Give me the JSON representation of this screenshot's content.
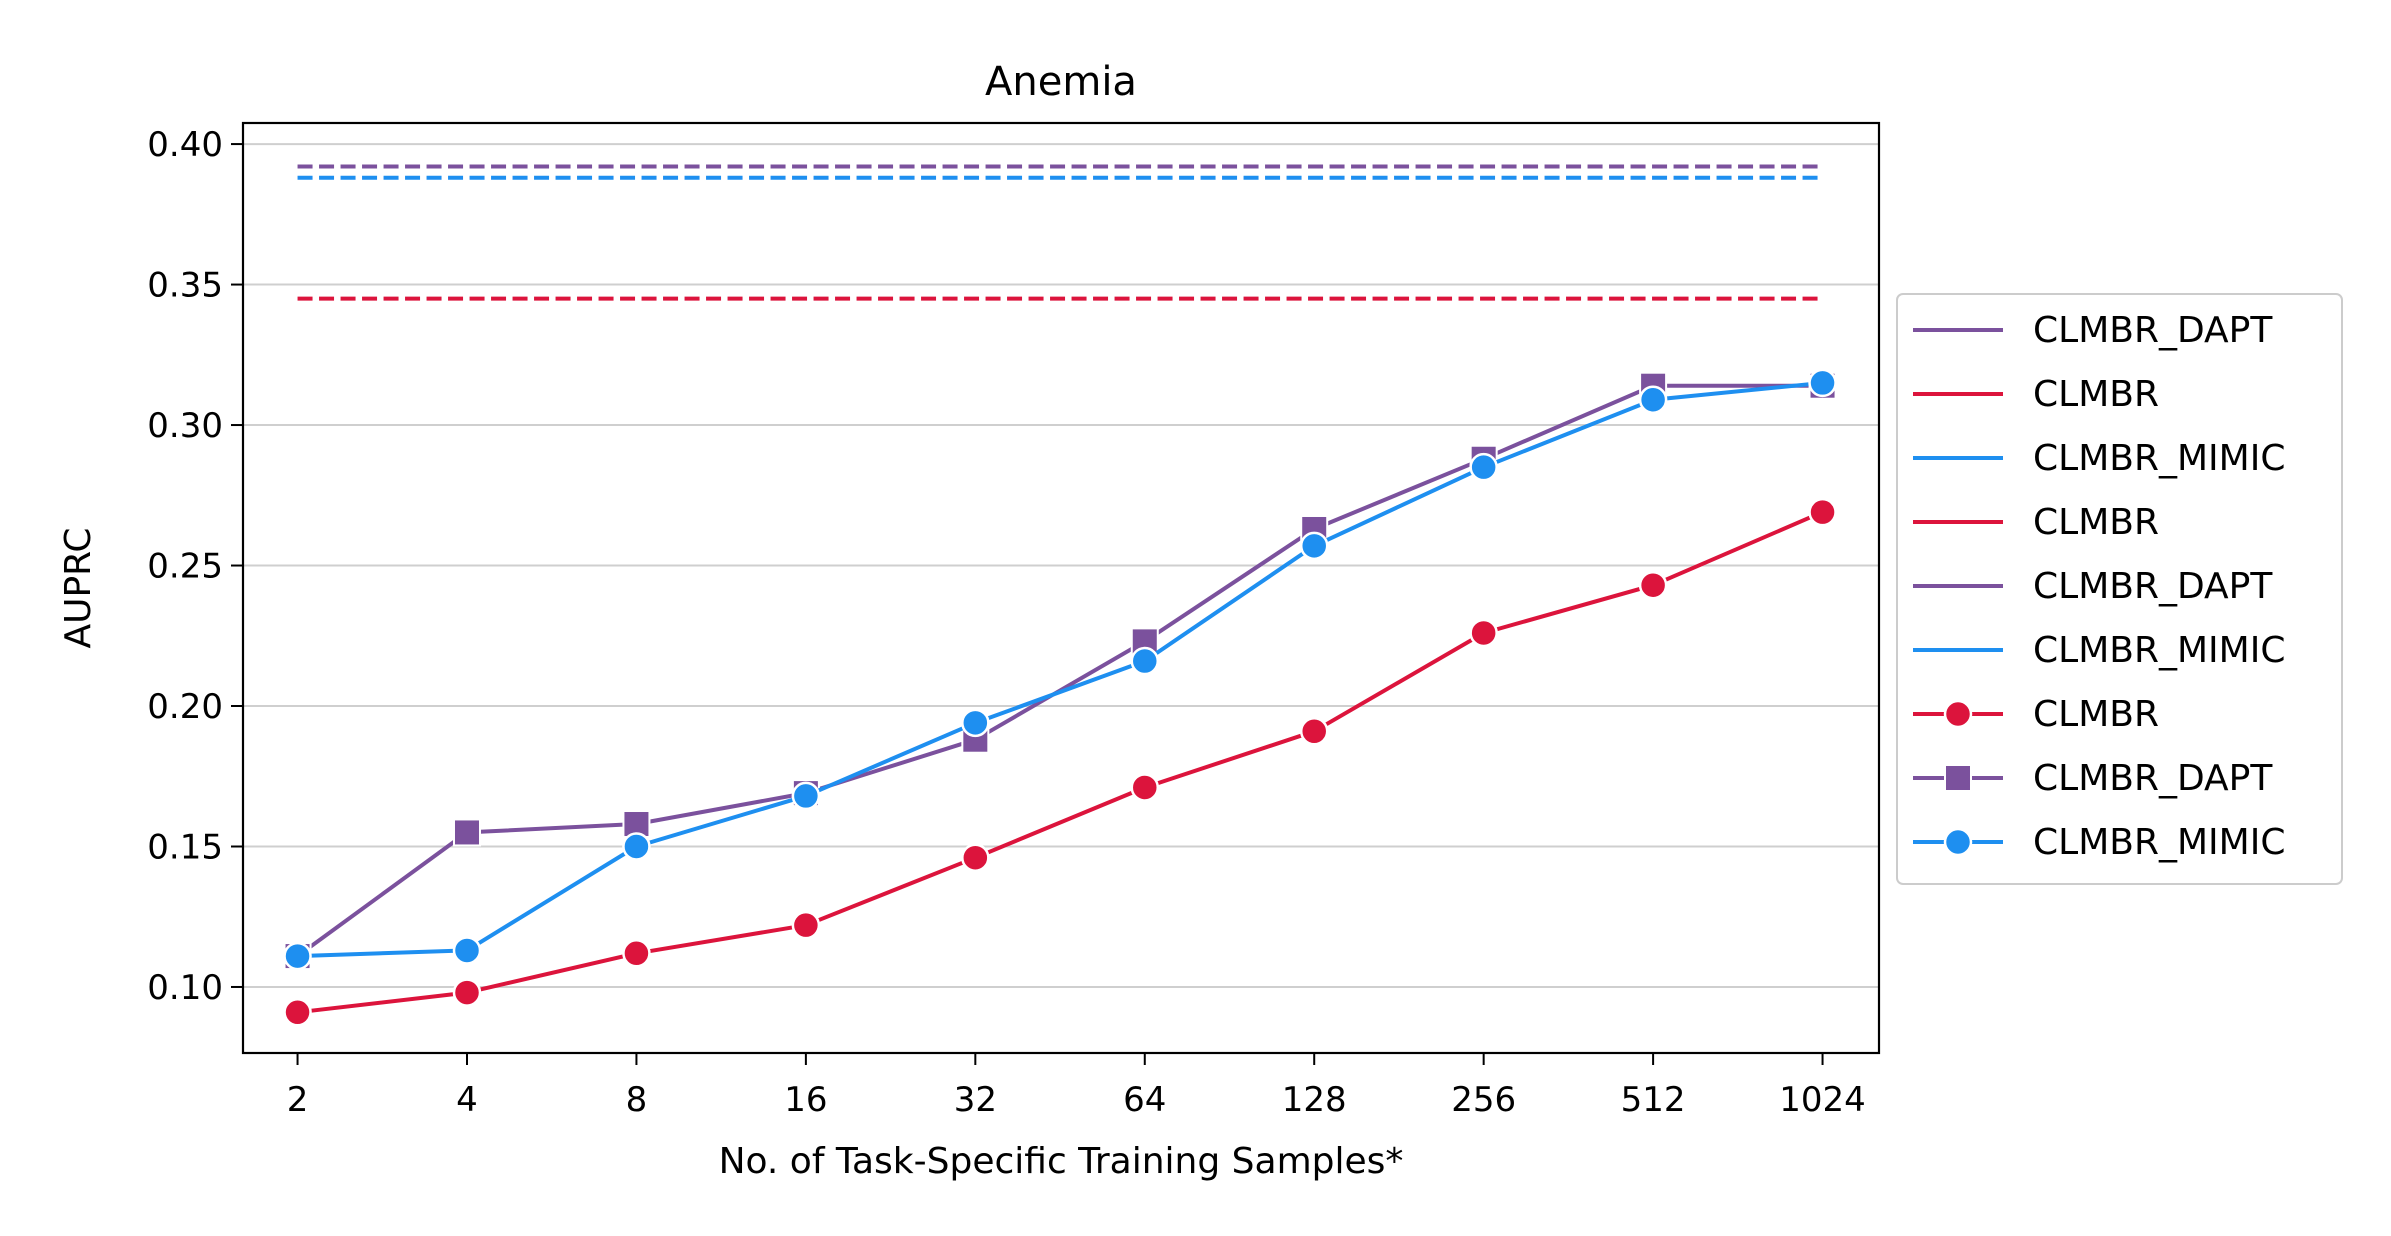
{
  "chart_data": {
    "type": "line",
    "title": "Anemia",
    "xlabel": "No. of Task-Specific Training Samples*",
    "ylabel": "AUPRC",
    "x": [
      2,
      4,
      8,
      16,
      32,
      64,
      128,
      256,
      512,
      1024
    ],
    "x_tick_labels": [
      "2",
      "4",
      "8",
      "16",
      "32",
      "64",
      "128",
      "256",
      "512",
      "1024"
    ],
    "x_scale": "log2",
    "y_ticks": [
      0.1,
      0.15,
      0.2,
      0.25,
      0.3,
      0.35,
      0.4
    ],
    "y_tick_labels": [
      "0.10",
      "0.15",
      "0.20",
      "0.25",
      "0.30",
      "0.35",
      "0.40"
    ],
    "ylim": [
      0.0765,
      0.4075
    ],
    "xlim": [
      1.6,
      1290
    ],
    "grid": "horizontal",
    "legend_position": "outside-right",
    "colors": {
      "CLMBR_DAPT": "#7b519d",
      "CLMBR": "#dc143c",
      "CLMBR_MIMIC": "#1e8ff0"
    },
    "reference_lines": [
      {
        "name": "CLMBR_DAPT",
        "value": 0.392,
        "color": "#7b519d",
        "style": "dashed"
      },
      {
        "name": "CLMBR_MIMIC",
        "value": 0.388,
        "color": "#1e8ff0",
        "style": "dashed"
      },
      {
        "name": "CLMBR",
        "value": 0.345,
        "color": "#dc143c",
        "style": "dashed"
      }
    ],
    "series": [
      {
        "name": "CLMBR",
        "marker": "circle",
        "color": "#dc143c",
        "values": [
          0.091,
          0.098,
          0.112,
          0.122,
          0.146,
          0.171,
          0.191,
          0.226,
          0.243,
          0.269
        ]
      },
      {
        "name": "CLMBR_DAPT",
        "marker": "square",
        "color": "#7b519d",
        "values": [
          0.111,
          0.155,
          0.158,
          0.169,
          0.188,
          0.223,
          0.263,
          0.288,
          0.314,
          0.314
        ]
      },
      {
        "name": "CLMBR_MIMIC",
        "marker": "circle",
        "color": "#1e8ff0",
        "values": [
          0.111,
          0.113,
          0.15,
          0.168,
          0.194,
          0.216,
          0.257,
          0.285,
          0.309,
          0.315
        ]
      }
    ],
    "legend": [
      {
        "label": "CLMBR_DAPT",
        "color": "#7b519d",
        "marker": "none"
      },
      {
        "label": "CLMBR",
        "color": "#dc143c",
        "marker": "none"
      },
      {
        "label": "CLMBR_MIMIC",
        "color": "#1e8ff0",
        "marker": "none"
      },
      {
        "label": "CLMBR",
        "color": "#dc143c",
        "marker": "none"
      },
      {
        "label": "CLMBR_DAPT",
        "color": "#7b519d",
        "marker": "none"
      },
      {
        "label": "CLMBR_MIMIC",
        "color": "#1e8ff0",
        "marker": "none"
      },
      {
        "label": "CLMBR",
        "color": "#dc143c",
        "marker": "circle"
      },
      {
        "label": "CLMBR_DAPT",
        "color": "#7b519d",
        "marker": "square"
      },
      {
        "label": "CLMBR_MIMIC",
        "color": "#1e8ff0",
        "marker": "circle"
      }
    ]
  }
}
